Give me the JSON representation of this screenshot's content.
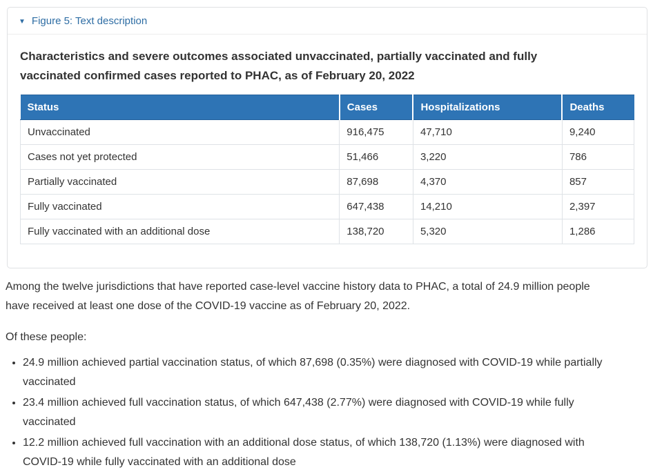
{
  "colors": {
    "summary_link_blue": "#2e6da4",
    "table_header_bg": "#2e74b5",
    "table_header_border": "#24619c",
    "table_header_text": "#ffffff",
    "table_body_border": "#dee2e6",
    "panel_border": "#dfe1e3",
    "body_text": "#333333"
  },
  "figure_panel": {
    "caret": "▼",
    "summary_label": "Figure 5: Text description",
    "title": "Characteristics and severe outcomes associated unvaccinated, partially vaccinated and fully\nvaccinated confirmed cases reported to PHAC, as of February 20, 2022",
    "table": {
      "columns": [
        "Status",
        "Cases",
        "Hospitalizations",
        "Deaths"
      ],
      "rows": [
        [
          "Unvaccinated",
          "916,475",
          "47,710",
          "9,240"
        ],
        [
          "Cases not yet protected",
          "51,466",
          "3,220",
          "786"
        ],
        [
          "Partially vaccinated",
          "87,698",
          "4,370",
          "857"
        ],
        [
          "Fully vaccinated",
          "647,438",
          "14,210",
          "2,397"
        ],
        [
          "Fully vaccinated with an additional dose",
          "138,720",
          "5,320",
          "1,286"
        ]
      ]
    }
  },
  "paragraphs": {
    "intro": "Among the twelve jurisdictions that have reported case-level vaccine history data to PHAC, a total of 24.9 million people\nhave received at least one dose of the COVID-19 vaccine as of February 20, 2022.",
    "lead_in": "Of these people:"
  },
  "bullets": [
    "24.9 million achieved partial vaccination status, of which 87,698 (0.35%) were diagnosed with COVID-19 while partially\nvaccinated",
    "23.4 million achieved full vaccination status, of which 647,438 (2.77%) were diagnosed with COVID-19 while fully\nvaccinated",
    "12.2 million achieved full vaccination with an additional dose status, of which 138,720 (1.13%) were diagnosed with\nCOVID-19 while fully vaccinated with an additional dose"
  ]
}
